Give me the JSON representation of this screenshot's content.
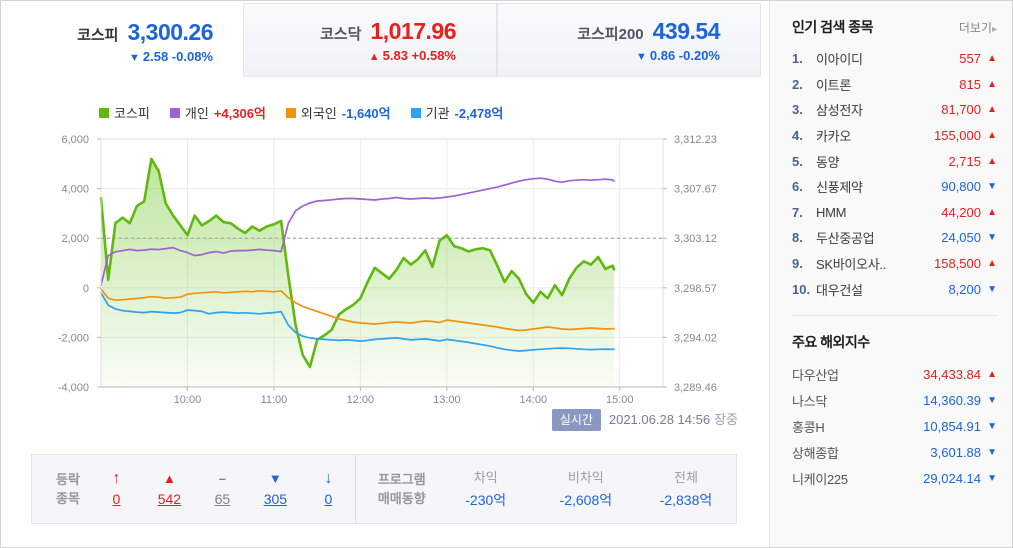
{
  "colors": {
    "up_red": "#e8201d",
    "down_blue": "#1b64dc",
    "kospi_green": "#61b80e",
    "individual_purple": "#9d63d2",
    "foreign_orange": "#f0930f",
    "institution_blue": "#2ea1ef",
    "badge_blue": "#8a97c3"
  },
  "tabs": [
    {
      "key": "kospi",
      "label": "코스피",
      "value": "3,300.26",
      "arrow": "▼",
      "change": "2.58 -0.08%",
      "direction": "down",
      "active": true
    },
    {
      "key": "kosdaq",
      "label": "코스닥",
      "value": "1,017.96",
      "arrow": "▲",
      "change": "5.83 +0.58%",
      "direction": "up",
      "active": false
    },
    {
      "key": "kospi200",
      "label": "코스피200",
      "value": "439.54",
      "arrow": "▼",
      "change": "0.86 -0.20%",
      "direction": "down",
      "active": false
    }
  ],
  "legend": [
    {
      "name": "코스피",
      "value": "",
      "swatch": "#61b80e",
      "value_dir": ""
    },
    {
      "name": "개인",
      "value": "+4,306억",
      "swatch": "#9d63d2",
      "value_dir": "up"
    },
    {
      "name": "외국인",
      "value": "-1,640억",
      "swatch": "#f0930f",
      "value_dir": "down"
    },
    {
      "name": "기관",
      "value": "-2,478억",
      "swatch": "#2ea1ef",
      "value_dir": "down"
    }
  ],
  "chart_data": {
    "type": "line",
    "x_unit": "minutes_from_09:00",
    "x_range_minutes": [
      0,
      390
    ],
    "x_ticks": [
      {
        "m": 60,
        "label": "10:00"
      },
      {
        "m": 120,
        "label": "11:00"
      },
      {
        "m": 180,
        "label": "12:00"
      },
      {
        "m": 240,
        "label": "13:00"
      },
      {
        "m": 300,
        "label": "14:00"
      },
      {
        "m": 360,
        "label": "15:00"
      }
    ],
    "left_axis": {
      "min": -4000,
      "max": 6000,
      "ticks": [
        {
          "v": 6000,
          "label": "6,000"
        },
        {
          "v": 4000,
          "label": "4,000"
        },
        {
          "v": 2000,
          "label": "2,000"
        },
        {
          "v": 0,
          "label": "0"
        },
        {
          "v": -2000,
          "label": "-2,000"
        },
        {
          "v": -4000,
          "label": "-4,000"
        }
      ]
    },
    "right_axis": {
      "min": 3289.46,
      "max": 3312.23,
      "ticks": [
        {
          "v": 3312.23,
          "label": "3,312.23"
        },
        {
          "v": 3307.67,
          "label": "3,307.67"
        },
        {
          "v": 3303.12,
          "label": "3,303.12"
        },
        {
          "v": 3298.57,
          "label": "3,298.57"
        },
        {
          "v": 3294.02,
          "label": "3,294.02"
        },
        {
          "v": 3289.46,
          "label": "3,289.46"
        }
      ]
    },
    "ref_line_left_value": 2000,
    "x_minutes": [
      0,
      5,
      10,
      15,
      20,
      25,
      30,
      35,
      40,
      45,
      50,
      55,
      60,
      65,
      70,
      75,
      80,
      85,
      90,
      95,
      100,
      105,
      110,
      115,
      120,
      125,
      130,
      135,
      140,
      145,
      150,
      155,
      160,
      165,
      170,
      175,
      180,
      185,
      190,
      195,
      200,
      205,
      210,
      215,
      220,
      225,
      230,
      235,
      240,
      245,
      250,
      255,
      260,
      265,
      270,
      275,
      280,
      285,
      290,
      295,
      300,
      305,
      310,
      315,
      320,
      325,
      330,
      335,
      340,
      345,
      350,
      355,
      356
    ],
    "series": [
      {
        "name": "코스피",
        "axis": "right",
        "style": "area",
        "color": "#61b80e",
        "values": [
          3306.8,
          3299.3,
          3304.5,
          3305.0,
          3304.5,
          3306.1,
          3306.5,
          3310.4,
          3309.3,
          3306.3,
          3305.2,
          3304.3,
          3303.4,
          3305.2,
          3304.3,
          3304.7,
          3305.2,
          3304.6,
          3304.5,
          3304.0,
          3303.6,
          3304.2,
          3303.8,
          3304.2,
          3304.4,
          3304.7,
          3299.7,
          3295.2,
          3292.4,
          3291.3,
          3293.8,
          3294.2,
          3294.7,
          3296.1,
          3296.6,
          3297.0,
          3297.6,
          3299.1,
          3300.4,
          3299.9,
          3299.4,
          3300.2,
          3301.3,
          3300.7,
          3301.2,
          3302.0,
          3300.5,
          3302.9,
          3303.4,
          3302.4,
          3302.2,
          3301.9,
          3302.1,
          3302.2,
          3302.0,
          3300.6,
          3299.1,
          3300.1,
          3299.4,
          3298.0,
          3297.2,
          3298.2,
          3297.6,
          3298.8,
          3297.9,
          3299.4,
          3300.4,
          3301.0,
          3300.7,
          3301.4,
          3300.3,
          3300.6,
          3300.26
        ]
      },
      {
        "name": "개인",
        "axis": "left",
        "style": "line",
        "color": "#9d63d2",
        "values": [
          100,
          1300,
          1450,
          1500,
          1550,
          1500,
          1520,
          1560,
          1540,
          1580,
          1620,
          1500,
          1420,
          1300,
          1340,
          1420,
          1460,
          1400,
          1480,
          1500,
          1500,
          1520,
          1550,
          1520,
          1500,
          1460,
          2600,
          3100,
          3300,
          3420,
          3500,
          3520,
          3550,
          3580,
          3600,
          3600,
          3580,
          3560,
          3540,
          3580,
          3600,
          3640,
          3600,
          3580,
          3600,
          3620,
          3600,
          3620,
          3660,
          3700,
          3760,
          3820,
          3880,
          3940,
          4000,
          4060,
          4140,
          4220,
          4300,
          4360,
          4400,
          4420,
          4380,
          4300,
          4260,
          4320,
          4340,
          4360,
          4340,
          4360,
          4380,
          4350,
          4306
        ]
      },
      {
        "name": "외국인",
        "axis": "left",
        "style": "line",
        "color": "#f0930f",
        "values": [
          -50,
          -420,
          -500,
          -480,
          -450,
          -430,
          -400,
          -360,
          -380,
          -420,
          -400,
          -380,
          -260,
          -220,
          -200,
          -180,
          -160,
          -200,
          -180,
          -160,
          -140,
          -160,
          -120,
          -140,
          -160,
          -120,
          -400,
          -600,
          -750,
          -850,
          -950,
          -1050,
          -1150,
          -1250,
          -1320,
          -1380,
          -1420,
          -1440,
          -1460,
          -1430,
          -1400,
          -1380,
          -1400,
          -1420,
          -1380,
          -1340,
          -1360,
          -1400,
          -1300,
          -1340,
          -1380,
          -1420,
          -1460,
          -1500,
          -1540,
          -1580,
          -1640,
          -1680,
          -1720,
          -1700,
          -1660,
          -1620,
          -1580,
          -1620,
          -1660,
          -1680,
          -1660,
          -1640,
          -1620,
          -1640,
          -1660,
          -1650,
          -1640
        ]
      },
      {
        "name": "기관",
        "axis": "left",
        "style": "line",
        "color": "#2ea1ef",
        "values": [
          -200,
          -700,
          -850,
          -920,
          -950,
          -980,
          -1000,
          -960,
          -980,
          -1000,
          -1020,
          -1000,
          -900,
          -920,
          -950,
          -1050,
          -1000,
          -980,
          -1000,
          -1020,
          -1010,
          -1030,
          -1050,
          -1020,
          -1000,
          -960,
          -1500,
          -1800,
          -1950,
          -2020,
          -2060,
          -2080,
          -2100,
          -2120,
          -2100,
          -2120,
          -2150,
          -2120,
          -2080,
          -2060,
          -2040,
          -2020,
          -2060,
          -2100,
          -2080,
          -2060,
          -2100,
          -2140,
          -2080,
          -2120,
          -2160,
          -2200,
          -2250,
          -2300,
          -2350,
          -2420,
          -2480,
          -2520,
          -2550,
          -2530,
          -2500,
          -2480,
          -2460,
          -2440,
          -2430,
          -2440,
          -2460,
          -2480,
          -2490,
          -2480,
          -2470,
          -2480,
          -2478
        ]
      }
    ]
  },
  "footer": {
    "realtime_label": "실시간",
    "timestamp": "2021.06.28 14:56",
    "market_status": "장중"
  },
  "updown": {
    "label_line1": "등락",
    "label_line2": "종목",
    "items": [
      {
        "icon": "arrow-up",
        "glyph": "↑",
        "count": "0",
        "tone": "up"
      },
      {
        "icon": "triangle-up",
        "glyph": "▲",
        "count": "542",
        "tone": "up"
      },
      {
        "icon": "dash",
        "glyph": "–",
        "count": "65",
        "tone": "flat"
      },
      {
        "icon": "triangle-down",
        "glyph": "▼",
        "count": "305",
        "tone": "down"
      },
      {
        "icon": "arrow-down",
        "glyph": "↓",
        "count": "0",
        "tone": "down"
      }
    ]
  },
  "program": {
    "label_line1": "프로그램",
    "label_line2": "매매동향",
    "items": [
      {
        "header": "차익",
        "value": "-230억"
      },
      {
        "header": "비차익",
        "value": "-2,608억"
      },
      {
        "header": "전체",
        "value": "-2,838억"
      }
    ]
  },
  "popular": {
    "title": "인기 검색 종목",
    "more_label": "더보기",
    "items": [
      {
        "rank": "1.",
        "name": "이아이디",
        "price": "557",
        "direction": "up"
      },
      {
        "rank": "2.",
        "name": "이트론",
        "price": "815",
        "direction": "up"
      },
      {
        "rank": "3.",
        "name": "삼성전자",
        "price": "81,700",
        "direction": "up"
      },
      {
        "rank": "4.",
        "name": "카카오",
        "price": "155,000",
        "direction": "up"
      },
      {
        "rank": "5.",
        "name": "동양",
        "price": "2,715",
        "direction": "up"
      },
      {
        "rank": "6.",
        "name": "신풍제약",
        "price": "90,800",
        "direction": "down"
      },
      {
        "rank": "7.",
        "name": "HMM",
        "price": "44,200",
        "direction": "up"
      },
      {
        "rank": "8.",
        "name": "두산중공업",
        "price": "24,050",
        "direction": "down"
      },
      {
        "rank": "9.",
        "name": "SK바이오사..",
        "price": "158,500",
        "direction": "up"
      },
      {
        "rank": "10.",
        "name": "대우건설",
        "price": "8,200",
        "direction": "down"
      }
    ]
  },
  "world": {
    "title": "주요 해외지수",
    "items": [
      {
        "name": "다우산업",
        "value": "34,433.84",
        "direction": "up"
      },
      {
        "name": "나스닥",
        "value": "14,360.39",
        "direction": "down"
      },
      {
        "name": "홍콩H",
        "value": "10,854.91",
        "direction": "down"
      },
      {
        "name": "상해종합",
        "value": "3,601.88",
        "direction": "down"
      },
      {
        "name": "니케이225",
        "value": "29,024.14",
        "direction": "down"
      }
    ]
  }
}
